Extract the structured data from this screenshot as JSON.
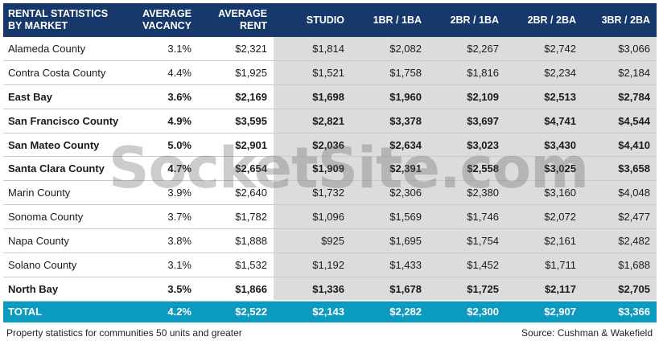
{
  "header": {
    "col0_line1": "RENTAL STATISTICS",
    "col0_line2": "BY MARKET",
    "col1_line1": "AVERAGE",
    "col1_line2": "VACANCY",
    "col2_line1": "AVERAGE",
    "col2_line2": "RENT",
    "col3": "STUDIO",
    "col4": "1BR / 1BA",
    "col5": "2BR / 1BA",
    "col6": "2BR / 2BA",
    "col7": "3BR / 2BA"
  },
  "rows": [
    {
      "market": "Alameda County",
      "vacancy": "3.1%",
      "rent": "$2,321",
      "studio": "$1,814",
      "br1ba1": "$2,082",
      "br2ba1": "$2,267",
      "br2ba2": "$2,742",
      "br3ba2": "$3,066",
      "bold": false
    },
    {
      "market": "Contra Costa County",
      "vacancy": "4.4%",
      "rent": "$1,925",
      "studio": "$1,521",
      "br1ba1": "$1,758",
      "br2ba1": "$1,816",
      "br2ba2": "$2,234",
      "br3ba2": "$2,184",
      "bold": false
    },
    {
      "market": "East Bay",
      "vacancy": "3.6%",
      "rent": "$2,169",
      "studio": "$1,698",
      "br1ba1": "$1,960",
      "br2ba1": "$2,109",
      "br2ba2": "$2,513",
      "br3ba2": "$2,784",
      "bold": true
    },
    {
      "market": "San Francisco County",
      "vacancy": "4.9%",
      "rent": "$3,595",
      "studio": "$2,821",
      "br1ba1": "$3,378",
      "br2ba1": "$3,697",
      "br2ba2": "$4,741",
      "br3ba2": "$4,544",
      "bold": true
    },
    {
      "market": "San Mateo County",
      "vacancy": "5.0%",
      "rent": "$2,901",
      "studio": "$2,036",
      "br1ba1": "$2,634",
      "br2ba1": "$3,023",
      "br2ba2": "$3,430",
      "br3ba2": "$4,410",
      "bold": true
    },
    {
      "market": "Santa Clara County",
      "vacancy": "4.7%",
      "rent": "$2,654",
      "studio": "$1,909",
      "br1ba1": "$2,391",
      "br2ba1": "$2,558",
      "br2ba2": "$3,025",
      "br3ba2": "$3,658",
      "bold": true
    },
    {
      "market": "Marin County",
      "vacancy": "3.9%",
      "rent": "$2,640",
      "studio": "$1,732",
      "br1ba1": "$2,306",
      "br2ba1": "$2,380",
      "br2ba2": "$3,160",
      "br3ba2": "$4,048",
      "bold": false
    },
    {
      "market": "Sonoma County",
      "vacancy": "3.7%",
      "rent": "$1,782",
      "studio": "$1,096",
      "br1ba1": "$1,569",
      "br2ba1": "$1,746",
      "br2ba2": "$2,072",
      "br3ba2": "$2,477",
      "bold": false
    },
    {
      "market": "Napa County",
      "vacancy": "3.8%",
      "rent": "$1,888",
      "studio": "$925",
      "br1ba1": "$1,695",
      "br2ba1": "$1,754",
      "br2ba2": "$2,161",
      "br3ba2": "$2,482",
      "bold": false
    },
    {
      "market": "Solano County",
      "vacancy": "3.1%",
      "rent": "$1,532",
      "studio": "$1,192",
      "br1ba1": "$1,433",
      "br2ba1": "$1,452",
      "br2ba2": "$1,711",
      "br3ba2": "$1,688",
      "bold": false
    },
    {
      "market": "North Bay",
      "vacancy": "3.5%",
      "rent": "$1,866",
      "studio": "$1,336",
      "br1ba1": "$1,678",
      "br2ba1": "$1,725",
      "br2ba2": "$2,117",
      "br3ba2": "$2,705",
      "bold": true
    }
  ],
  "total": {
    "market": "TOTAL",
    "vacancy": "4.2%",
    "rent": "$2,522",
    "studio": "$2,143",
    "br1ba1": "$2,282",
    "br2ba1": "$2,300",
    "br2ba2": "$2,907",
    "br3ba2": "$3,366"
  },
  "watermark": "SocketSite.com",
  "footer": {
    "note": "Property statistics for communities  50 units and greater",
    "source": "Source: Cushman & Wakefield"
  },
  "colors": {
    "header_bg": "#17386b",
    "total_bg": "#0b9bc1",
    "shade": "#dcdcdc"
  }
}
